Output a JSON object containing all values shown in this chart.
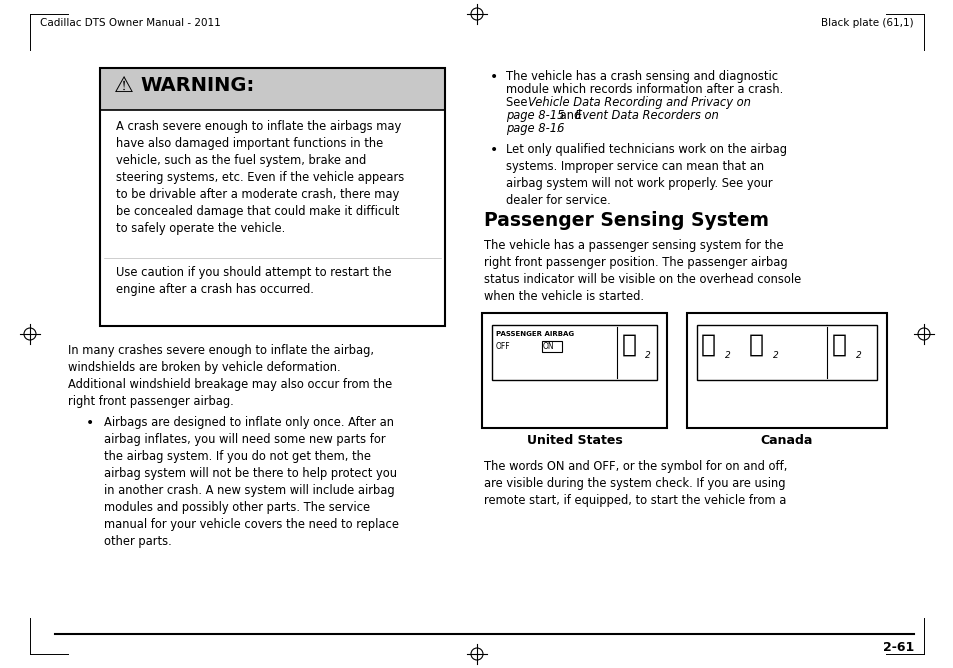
{
  "bg_color": "#ffffff",
  "header_left": "Cadillac DTS Owner Manual - 2011",
  "header_right": "Black plate (61,1)",
  "page_number": "2-61",
  "warning_header_bg": "#c8c8c8",
  "warning_body1": "A crash severe enough to inflate the airbags may\nhave also damaged important functions in the\nvehicle, such as the fuel system, brake and\nsteering systems, etc. Even if the vehicle appears\nto be drivable after a moderate crash, there may\nbe concealed damage that could make it difficult\nto safely operate the vehicle.",
  "warning_body2": "Use caution if you should attempt to restart the\nengine after a crash has occurred.",
  "left_body": "In many crashes severe enough to inflate the airbag,\nwindshields are broken by vehicle deformation.\nAdditional windshield breakage may also occur from the\nright front passenger airbag.",
  "bullet_left": "Airbags are designed to inflate only once. After an\nairbag inflates, you will need some new parts for\nthe airbag system. If you do not get them, the\nairbag system will not be there to help protect you\nin another crash. A new system will include airbag\nmodules and possibly other parts. The service\nmanual for your vehicle covers the need to replace\nother parts.",
  "rb1_normal1": "The vehicle has a crash sensing and diagnostic",
  "rb1_normal2": "module which records information after a crash.",
  "rb1_see": "See ",
  "rb1_italic1": "Vehicle Data Recording and Privacy on",
  "rb1_italic2": "page 8-15",
  "rb1_and": " and ",
  "rb1_italic3": "Event Data Recorders on",
  "rb1_italic4": "page 8-16",
  "rb1_period": ".",
  "rb2": "Let only qualified technicians work on the airbag\nsystems. Improper service can mean that an\nairbag system will not work properly. See your\ndealer for service.",
  "section_title": "Passenger Sensing System",
  "section_body": "The vehicle has a passenger sensing system for the\nright front passenger position. The passenger airbag\nstatus indicator will be visible on the overhead console\nwhen the vehicle is started.",
  "us_label": "United States",
  "canada_label": "Canada",
  "bottom_text": "The words ON and OFF, or the symbol for on and off,\nare visible during the system check. If you are using\nremote start, if equipped, to start the vehicle from a",
  "font_size_body": 8.3,
  "font_size_header": 7.5,
  "font_size_section": 13.5,
  "font_size_warning_title": 14.0,
  "font_size_label": 9.0
}
